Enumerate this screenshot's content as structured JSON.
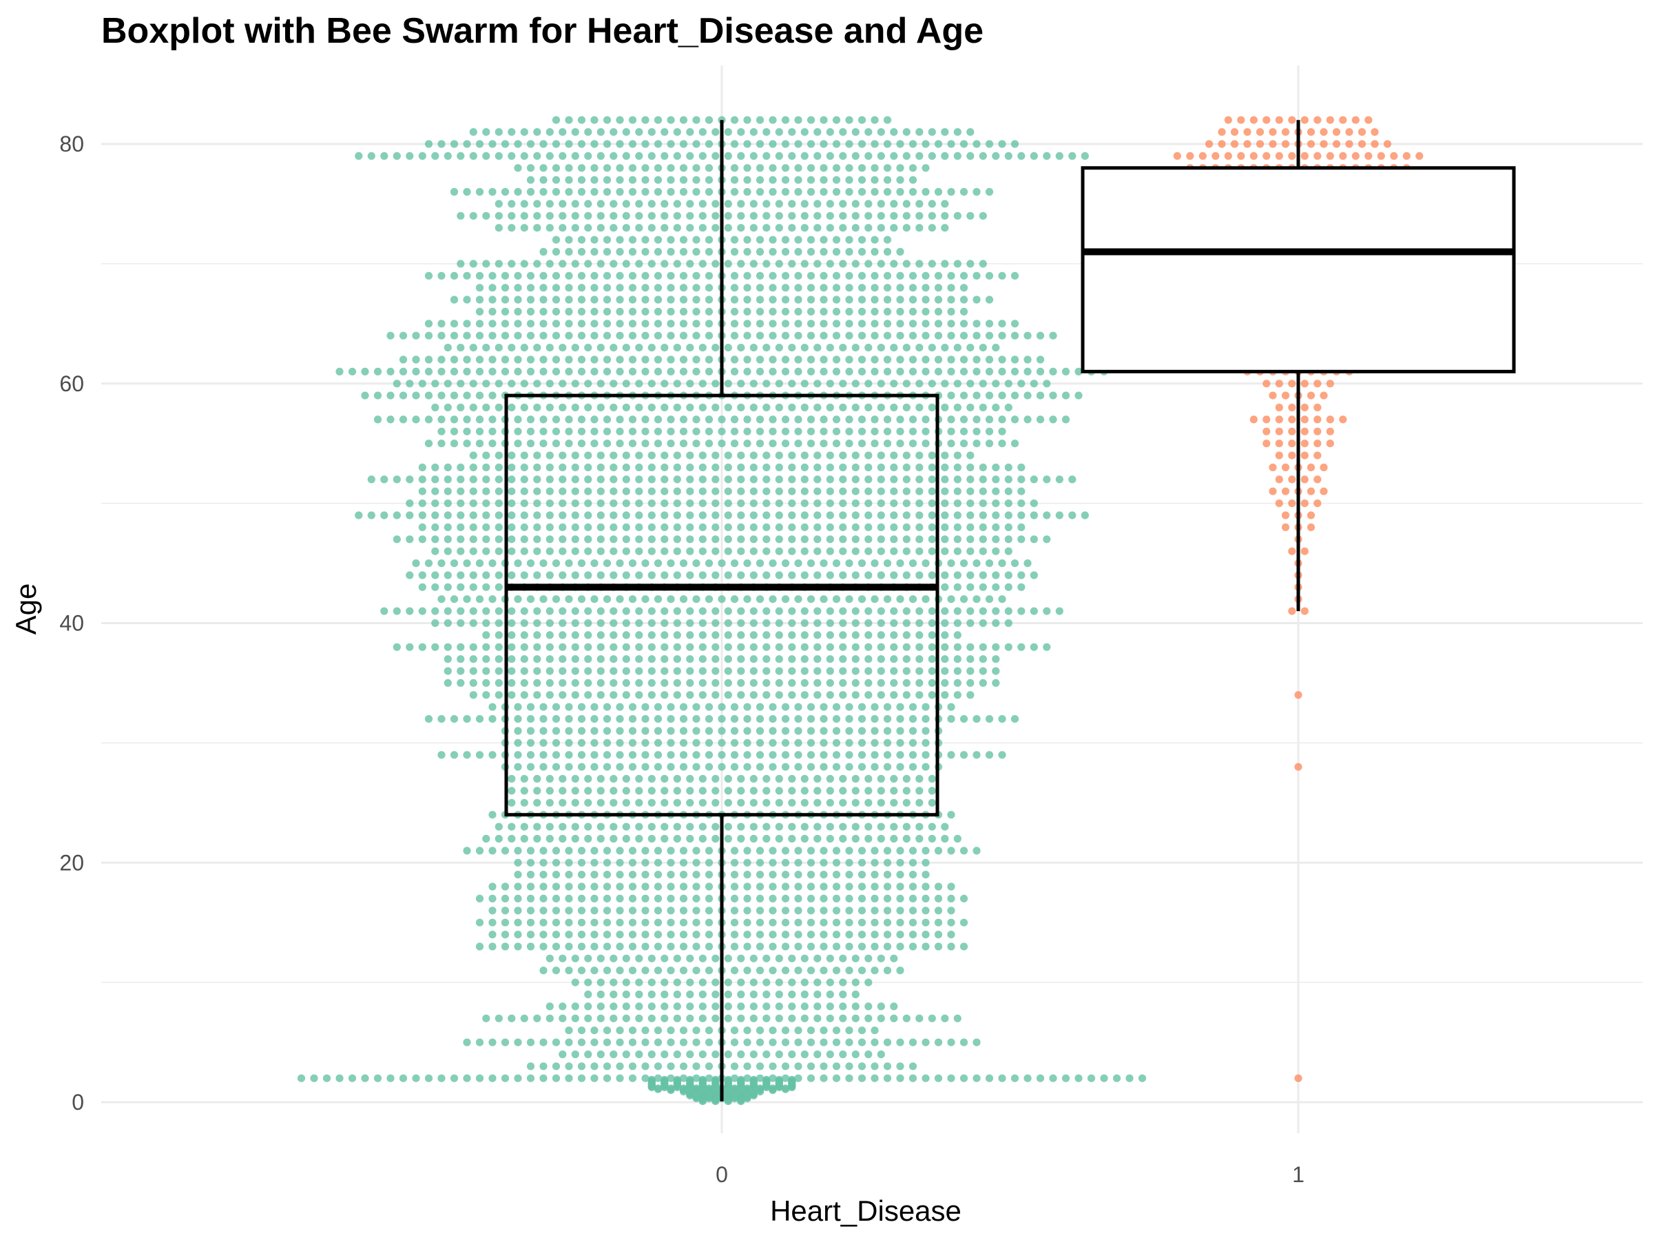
{
  "chart_data": {
    "type": "boxplot",
    "overlay": "beeswarm",
    "title": "Boxplot with Bee Swarm for Heart_Disease and Age",
    "xlabel": "Heart_Disease",
    "ylabel": "Age",
    "categories": [
      "0",
      "1"
    ],
    "yticks": [
      0,
      20,
      40,
      60,
      80
    ],
    "ylim": [
      -2,
      86
    ],
    "grid": true,
    "legend": "none",
    "colors": {
      "0": "#66c2a5",
      "1": "#fc8d62",
      "box": "#000000",
      "grid": "#ebebeb"
    },
    "boxes": [
      {
        "category": "0",
        "lower_whisker": 0.08,
        "q1": 24,
        "median": 43,
        "q3": 59,
        "upper_whisker": 82
      },
      {
        "category": "1",
        "lower_whisker": 41,
        "q1": 61,
        "median": 71,
        "q3": 78,
        "upper_whisker": 82
      }
    ],
    "swarm": [
      {
        "category": "0",
        "ages": [
          0.08,
          0.16,
          0.24,
          0.32,
          0.4,
          0.48,
          0.56,
          0.64,
          0.72,
          0.8,
          0.88,
          1,
          1.08,
          1.16,
          1.24,
          1.32,
          1.4,
          1.48,
          1.56,
          1.64,
          1.72,
          1.8,
          1.88,
          2,
          3,
          4,
          5,
          6,
          7,
          8,
          9,
          10,
          11,
          12,
          13,
          14,
          15,
          16,
          17,
          18,
          19,
          20,
          21,
          22,
          23,
          24,
          25,
          26,
          27,
          28,
          29,
          30,
          31,
          32,
          33,
          34,
          35,
          36,
          37,
          38,
          39,
          40,
          41,
          42,
          43,
          44,
          45,
          46,
          47,
          48,
          49,
          50,
          51,
          52,
          53,
          54,
          55,
          56,
          57,
          58,
          59,
          60,
          61,
          62,
          63,
          64,
          65,
          66,
          67,
          68,
          69,
          70,
          71,
          72,
          73,
          74,
          75,
          76,
          77,
          78,
          79,
          80,
          81,
          82
        ],
        "counts": [
          4,
          4,
          4,
          5,
          5,
          5,
          6,
          6,
          6,
          6,
          7,
          9,
          11,
          11,
          12,
          12,
          12,
          12,
          12,
          12,
          12,
          12,
          12,
          67,
          31,
          26,
          41,
          25,
          38,
          28,
          22,
          24,
          29,
          28,
          39,
          37,
          39,
          37,
          39,
          37,
          33,
          33,
          41,
          38,
          36,
          37,
          34,
          34,
          34,
          35,
          45,
          35,
          35,
          47,
          37,
          40,
          44,
          44,
          44,
          52,
          38,
          46,
          54,
          45,
          48,
          50,
          49,
          46,
          52,
          48,
          58,
          50,
          48,
          56,
          48,
          40,
          47,
          45,
          55,
          46,
          57,
          52,
          61,
          51,
          44,
          53,
          47,
          39,
          43,
          39,
          47,
          42,
          29,
          27,
          36,
          42,
          36,
          43,
          31,
          33,
          58,
          47,
          40,
          27
        ]
      },
      {
        "category": "1",
        "ages": [
          2,
          28,
          34,
          41,
          42,
          43,
          44,
          45,
          46,
          47,
          48,
          49,
          50,
          51,
          52,
          53,
          54,
          55,
          56,
          57,
          58,
          59,
          60,
          61,
          62,
          63,
          64,
          65,
          66,
          67,
          68,
          69,
          70,
          71,
          72,
          73,
          74,
          75,
          76,
          77,
          78,
          79,
          80,
          81,
          82
        ],
        "counts": [
          1,
          1,
          1,
          2,
          1,
          1,
          1,
          1,
          2,
          1,
          3,
          3,
          4,
          5,
          4,
          5,
          4,
          6,
          6,
          8,
          4,
          5,
          6,
          9,
          7,
          11,
          9,
          6,
          6,
          6,
          6,
          13,
          11,
          12,
          14,
          11,
          7,
          9,
          11,
          9,
          18,
          20,
          15,
          13,
          12
        ]
      }
    ]
  }
}
